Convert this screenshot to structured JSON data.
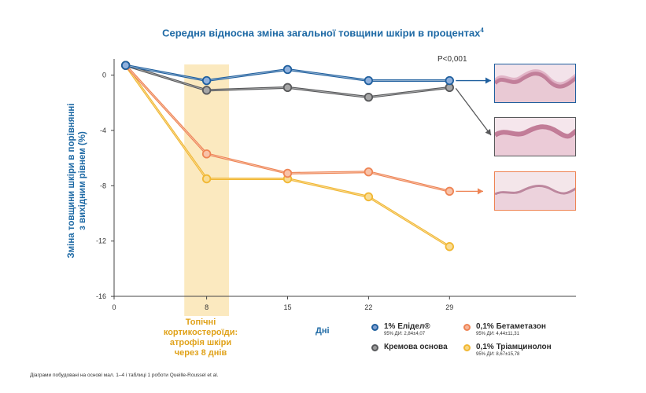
{
  "chart_data": {
    "type": "line",
    "title": "Середня відносна зміна загальної товщини шкіри в процентах",
    "title_superscript": "4",
    "ylabel_line1": "Зміна товщини шкіри в порівнянні",
    "ylabel_line2": "з вихідним рівнем (%)",
    "xlabel": "Дні",
    "x": [
      1,
      8,
      15,
      22,
      29
    ],
    "x_ticks": [
      0,
      8,
      15,
      22,
      29
    ],
    "y_ticks": [
      0,
      -4,
      -8,
      -12,
      -16
    ],
    "xlim": [
      0,
      37
    ],
    "ylim": [
      -16,
      1
    ],
    "x_tick_labels": [
      "0",
      "8",
      "15",
      "22",
      "29"
    ],
    "y_tick_labels": [
      "0",
      "-4",
      "-8",
      "-12",
      "-16"
    ],
    "grid": false,
    "legend_position": "bottom-right",
    "series": [
      {
        "name": "1% Елідел®",
        "ci": "95% ДИ: 2,84±4,07",
        "color": "#1f5f9e",
        "values": [
          0.7,
          -0.4,
          0.4,
          -0.4,
          -0.4
        ]
      },
      {
        "name": "Кремова основа",
        "ci": "",
        "color": "#58595b",
        "values": [
          0.7,
          -1.1,
          -0.9,
          -1.6,
          -0.9
        ]
      },
      {
        "name": "0,1% Бетаметазон",
        "ci": "95% ДИ: 4,44±11,31",
        "color": "#ee8454",
        "values": [
          0.7,
          -5.7,
          -7.1,
          -7.0,
          -8.4
        ]
      },
      {
        "name": "0,1% Тріамцинолон",
        "ci": "95% ДИ: 8,67±15,78",
        "color": "#f1b732",
        "values": [
          0.7,
          -7.5,
          -7.5,
          -8.8,
          -12.4
        ]
      }
    ],
    "highlight_band": {
      "x_from": 6,
      "x_to": 10,
      "color": "#fbe9bf"
    },
    "annotations": {
      "pvalue": "P<0,001",
      "band_note": [
        "Топічні",
        "кортикостероїди:",
        "атрофія шкіри",
        "через 8 днів"
      ]
    }
  },
  "footnote": "Діаграми побудовані на основі мал. 1–4 і таблиці 1 роботи Queille-Roussel et al."
}
